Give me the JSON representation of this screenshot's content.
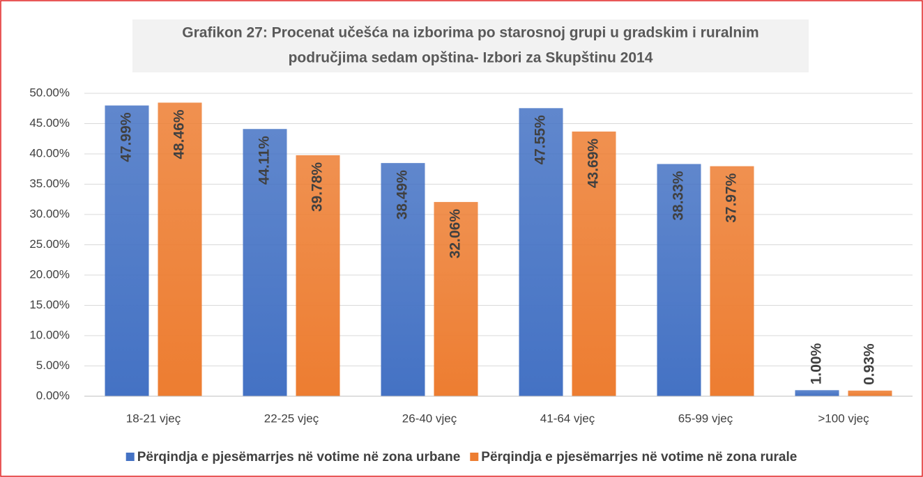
{
  "chart_data": {
    "type": "bar",
    "title": "Grafikon 27: Procenat učešća na izborima po starosnoj grupi u gradskim i ruralnim",
    "subtitle": "područjima sedam opština- Izbori za Skupštinu 2014",
    "categories": [
      "18-21 vjeç",
      "22-25 vjeç",
      "26-40 vjeç",
      "41-64 vjeç",
      "65-99 vjeç",
      ">100 vjeç"
    ],
    "series": [
      {
        "name": "Përqindja e pjesëmarrjes në votime në zona urbane",
        "color": "#4472c4",
        "values": [
          47.99,
          44.11,
          38.49,
          47.55,
          38.33,
          1.0
        ],
        "value_labels": [
          "47.99%",
          "44.11%",
          "38.49%",
          "47.55%",
          "38.33%",
          "1.00%"
        ]
      },
      {
        "name": "Përqindja e pjesëmarrjes në votime në zona rurale",
        "color": "#ed7d31",
        "values": [
          48.46,
          39.78,
          32.06,
          43.69,
          37.97,
          0.93
        ],
        "value_labels": [
          "48.46%",
          "39.78%",
          "32.06%",
          "43.69%",
          "37.97%",
          "0.93%"
        ]
      }
    ],
    "ylim": [
      0,
      50
    ],
    "yticks": [
      {
        "value": 0,
        "label": "0.00%"
      },
      {
        "value": 5,
        "label": "5.00%"
      },
      {
        "value": 10,
        "label": "10.00%"
      },
      {
        "value": 15,
        "label": "15.00%"
      },
      {
        "value": 20,
        "label": "20.00%"
      },
      {
        "value": 25,
        "label": "25.00%"
      },
      {
        "value": 30,
        "label": "30.00%"
      },
      {
        "value": 35,
        "label": "35.00%"
      },
      {
        "value": 40,
        "label": "40.00%"
      },
      {
        "value": 45,
        "label": "45.00%"
      },
      {
        "value": 50,
        "label": "50.00%"
      }
    ],
    "grid": true,
    "legend": "bottom"
  }
}
